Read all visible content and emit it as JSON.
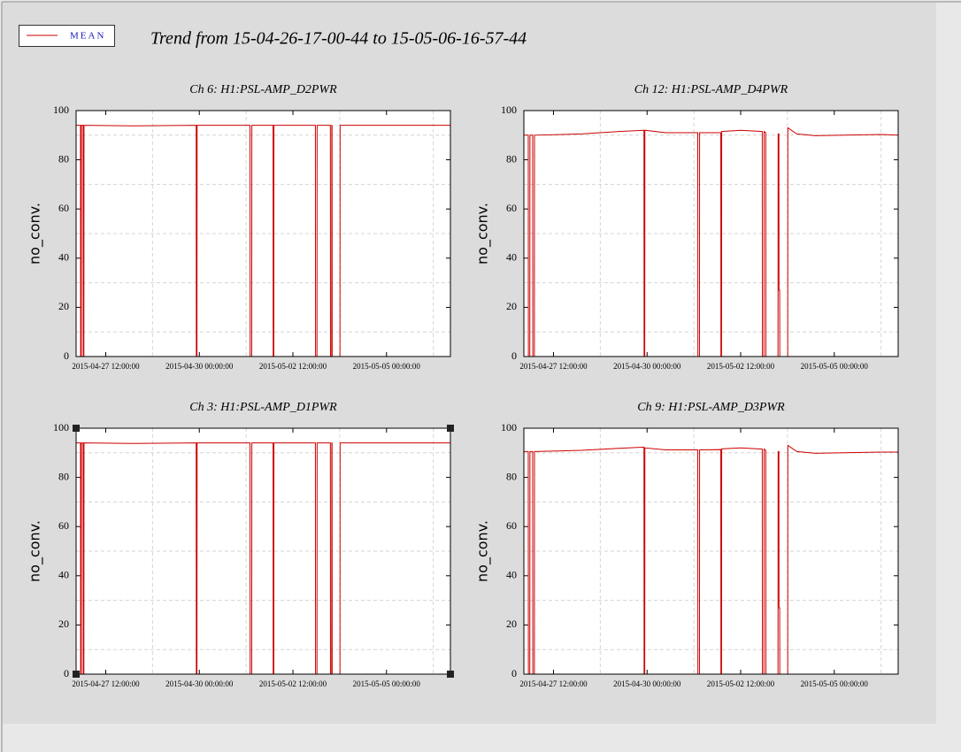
{
  "title": "Trend from 15-04-26-17-00-44 to 15-05-06-16-57-44",
  "chart_data": [
    {
      "type": "line",
      "title": "Ch 6: H1:PSL-AMP_D2PWR",
      "ylabel": "no_conv.",
      "ylim": [
        0,
        100
      ],
      "yticks": [
        0,
        20,
        40,
        60,
        80,
        100
      ],
      "ygrid": [
        10,
        30,
        50,
        70,
        90
      ],
      "xlim": [
        "2015-04-26 17:00:44",
        "2015-05-06 16:57:44"
      ],
      "xticks": [
        "2015-04-27 12:00:00",
        "2015-04-30 00:00:00",
        "2015-05-02 12:00:00",
        "2015-05-05 00:00:00"
      ],
      "xgrid": [
        "2015-04-28 18:00:00",
        "2015-05-01 06:00:00",
        "2015-05-03 18:00:00",
        "2015-05-06 06:00:00"
      ],
      "x": [
        "2015-04-26 17:00:44",
        "2015-04-26 19:50:00",
        "2015-04-26 19:55:00",
        "2015-04-26 20:20:00",
        "2015-04-26 20:25:00",
        "2015-04-26 21:30:00",
        "2015-04-26 21:35:00",
        "2015-04-26 22:00:00",
        "2015-04-26 22:05:00",
        "2015-04-28 06:00:00",
        "2015-04-29 22:00:00",
        "2015-04-29 22:05:00",
        "2015-04-29 22:30:00",
        "2015-04-29 22:35:00",
        "2015-05-01 08:30:00",
        "2015-05-01 08:35:00",
        "2015-05-01 09:35:00",
        "2015-05-01 09:40:00",
        "2015-05-01 23:15:00",
        "2015-05-01 23:20:00",
        "2015-05-01 23:45:00",
        "2015-05-01 23:50:00",
        "2015-05-03 02:25:00",
        "2015-05-03 02:30:00",
        "2015-05-03 03:25:00",
        "2015-05-03 03:30:00",
        "2015-05-03 12:00:00",
        "2015-05-03 12:05:00",
        "2015-05-03 12:50:00",
        "2015-05-03 12:55:00",
        "2015-05-03 13:05:00",
        "2015-05-03 13:10:00",
        "2015-05-03 18:10:00",
        "2015-05-03 18:15:00",
        "2015-05-06 16:57:44"
      ],
      "series": [
        {
          "name": "MEAN",
          "color": "#cc0000",
          "values": [
            94,
            94,
            0,
            0,
            94,
            94,
            0,
            0,
            94,
            93.8,
            94,
            0,
            0,
            94,
            94,
            0,
            0,
            94,
            94,
            0,
            0,
            94,
            94,
            0,
            0,
            94,
            94,
            0,
            0,
            94,
            94,
            0,
            0,
            94,
            94
          ]
        }
      ]
    },
    {
      "type": "line",
      "title": "Ch 12: H1:PSL-AMP_D4PWR",
      "ylabel": "no_conv.",
      "ylim": [
        0,
        100
      ],
      "yticks": [
        0,
        20,
        40,
        60,
        80,
        100
      ],
      "ygrid": [
        10,
        30,
        50,
        70,
        90
      ],
      "xlim": [
        "2015-04-26 17:00:44",
        "2015-05-06 16:57:44"
      ],
      "xticks": [
        "2015-04-27 12:00:00",
        "2015-04-30 00:00:00",
        "2015-05-02 12:00:00",
        "2015-05-05 00:00:00"
      ],
      "xgrid": [
        "2015-04-28 18:00:00",
        "2015-05-01 06:00:00",
        "2015-05-03 18:00:00",
        "2015-05-06 06:00:00"
      ],
      "x": [
        "2015-04-26 17:00:44",
        "2015-04-26 19:50:00",
        "2015-04-26 19:55:00",
        "2015-04-26 20:50:00",
        "2015-04-26 20:55:00",
        "2015-04-26 22:40:00",
        "2015-04-26 22:45:00",
        "2015-04-26 23:45:00",
        "2015-04-26 23:50:00",
        "2015-04-28 06:00:00",
        "2015-04-29 06:00:00",
        "2015-04-29 22:00:00",
        "2015-04-29 22:05:00",
        "2015-04-29 22:30:00",
        "2015-04-29 22:35:00",
        "2015-04-30 12:00:00",
        "2015-05-01 08:30:00",
        "2015-05-01 08:35:00",
        "2015-05-01 09:35:00",
        "2015-05-01 09:40:00",
        "2015-05-01 23:15:00",
        "2015-05-01 23:20:00",
        "2015-05-01 23:45:00",
        "2015-05-01 23:50:00",
        "2015-05-02 12:00:00",
        "2015-05-03 01:50:00",
        "2015-05-03 01:55:00",
        "2015-05-03 02:55:00",
        "2015-05-03 03:00:00",
        "2015-05-03 04:05:00",
        "2015-05-03 04:10:00",
        "2015-05-03 11:55:00",
        "2015-05-03 12:00:00",
        "2015-05-03 12:30:00",
        "2015-05-03 12:35:00",
        "2015-05-03 13:00:00",
        "2015-05-03 13:05:00",
        "2015-05-03 18:10:00",
        "2015-05-03 18:15:00",
        "2015-05-04 00:00:00",
        "2015-05-04 12:00:00",
        "2015-05-05 06:00:00",
        "2015-05-06 06:00:00",
        "2015-05-06 16:57:44"
      ],
      "series": [
        {
          "name": "MEAN",
          "color": "#cc0000",
          "values": [
            90,
            90,
            0,
            0,
            90,
            90,
            0,
            0,
            90,
            90.5,
            91.5,
            92,
            0,
            0,
            92,
            91,
            91,
            0,
            0,
            91,
            91,
            0,
            0,
            91.5,
            92,
            91.5,
            0,
            0,
            91.5,
            91,
            0,
            0,
            90.5,
            90.5,
            27,
            27,
            0,
            0,
            93,
            90.5,
            89.8,
            90,
            90.3,
            90
          ]
        }
      ]
    },
    {
      "type": "line",
      "title": "Ch 3: H1:PSL-AMP_D1PWR",
      "ylabel": "no_conv.",
      "ylim": [
        0,
        100
      ],
      "yticks": [
        0,
        20,
        40,
        60,
        80,
        100
      ],
      "ygrid": [
        10,
        30,
        50,
        70,
        90
      ],
      "xlim": [
        "2015-04-26 17:00:44",
        "2015-05-06 16:57:44"
      ],
      "xticks": [
        "2015-04-27 12:00:00",
        "2015-04-30 00:00:00",
        "2015-05-02 12:00:00",
        "2015-05-05 00:00:00"
      ],
      "xgrid": [
        "2015-04-28 18:00:00",
        "2015-05-01 06:00:00",
        "2015-05-03 18:00:00",
        "2015-05-06 06:00:00"
      ],
      "x": [
        "2015-04-26 17:00:44",
        "2015-04-26 19:50:00",
        "2015-04-26 19:55:00",
        "2015-04-26 20:20:00",
        "2015-04-26 20:25:00",
        "2015-04-26 21:30:00",
        "2015-04-26 21:35:00",
        "2015-04-26 22:00:00",
        "2015-04-26 22:05:00",
        "2015-04-28 06:00:00",
        "2015-04-29 22:00:00",
        "2015-04-29 22:05:00",
        "2015-04-29 22:30:00",
        "2015-04-29 22:35:00",
        "2015-05-01 08:30:00",
        "2015-05-01 08:35:00",
        "2015-05-01 09:35:00",
        "2015-05-01 09:40:00",
        "2015-05-01 23:15:00",
        "2015-05-01 23:20:00",
        "2015-05-01 23:45:00",
        "2015-05-01 23:50:00",
        "2015-05-03 02:25:00",
        "2015-05-03 02:30:00",
        "2015-05-03 03:25:00",
        "2015-05-03 03:30:00",
        "2015-05-03 12:00:00",
        "2015-05-03 12:05:00",
        "2015-05-03 12:50:00",
        "2015-05-03 12:55:00",
        "2015-05-03 13:05:00",
        "2015-05-03 13:10:00",
        "2015-05-03 18:10:00",
        "2015-05-03 18:15:00",
        "2015-05-06 16:57:44"
      ],
      "series": [
        {
          "name": "MEAN",
          "color": "#cc0000",
          "values": [
            94,
            94,
            0,
            0,
            94,
            94,
            0,
            0,
            94,
            93.8,
            94,
            0,
            0,
            94,
            94,
            0,
            0,
            94,
            94,
            0,
            0,
            94,
            94,
            0,
            0,
            94,
            94,
            0,
            0,
            94,
            94,
            0,
            0,
            94,
            94
          ]
        }
      ]
    },
    {
      "type": "line",
      "title": "Ch 9: H1:PSL-AMP_D3PWR",
      "ylabel": "no_conv.",
      "ylim": [
        0,
        100
      ],
      "yticks": [
        0,
        20,
        40,
        60,
        80,
        100
      ],
      "ygrid": [
        10,
        30,
        50,
        70,
        90
      ],
      "xlim": [
        "2015-04-26 17:00:44",
        "2015-05-06 16:57:44"
      ],
      "xticks": [
        "2015-04-27 12:00:00",
        "2015-04-30 00:00:00",
        "2015-05-02 12:00:00",
        "2015-05-05 00:00:00"
      ],
      "xgrid": [
        "2015-04-28 18:00:00",
        "2015-05-01 06:00:00",
        "2015-05-03 18:00:00",
        "2015-05-06 06:00:00"
      ],
      "x": [
        "2015-04-26 17:00:44",
        "2015-04-26 19:50:00",
        "2015-04-26 19:55:00",
        "2015-04-26 20:50:00",
        "2015-04-26 20:55:00",
        "2015-04-26 22:40:00",
        "2015-04-26 22:45:00",
        "2015-04-26 23:45:00",
        "2015-04-26 23:50:00",
        "2015-04-28 06:00:00",
        "2015-04-29 06:00:00",
        "2015-04-29 22:00:00",
        "2015-04-29 22:05:00",
        "2015-04-29 22:30:00",
        "2015-04-29 22:35:00",
        "2015-04-30 12:00:00",
        "2015-05-01 08:30:00",
        "2015-05-01 08:35:00",
        "2015-05-01 09:35:00",
        "2015-05-01 09:40:00",
        "2015-05-01 23:15:00",
        "2015-05-01 23:20:00",
        "2015-05-01 23:45:00",
        "2015-05-01 23:50:00",
        "2015-05-02 12:00:00",
        "2015-05-03 01:50:00",
        "2015-05-03 01:55:00",
        "2015-05-03 02:55:00",
        "2015-05-03 03:00:00",
        "2015-05-03 04:05:00",
        "2015-05-03 04:10:00",
        "2015-05-03 11:55:00",
        "2015-05-03 12:00:00",
        "2015-05-03 12:30:00",
        "2015-05-03 12:35:00",
        "2015-05-03 13:00:00",
        "2015-05-03 13:05:00",
        "2015-05-03 18:10:00",
        "2015-05-03 18:15:00",
        "2015-05-04 00:00:00",
        "2015-05-04 12:00:00",
        "2015-05-05 06:00:00",
        "2015-05-06 06:00:00",
        "2015-05-06 16:57:44"
      ],
      "series": [
        {
          "name": "MEAN",
          "color": "#cc0000",
          "values": [
            90.5,
            90.5,
            0,
            0,
            90.5,
            90.5,
            0,
            0,
            90.5,
            91,
            91.8,
            92.3,
            0,
            0,
            92,
            91.2,
            91.2,
            0,
            0,
            91.2,
            91.3,
            0,
            0,
            91.6,
            92,
            91.5,
            0,
            0,
            91.5,
            91,
            0,
            0,
            90.5,
            90.5,
            27,
            27,
            0,
            0,
            93,
            90.5,
            89.8,
            90,
            90.3,
            90.3
          ]
        }
      ]
    }
  ]
}
